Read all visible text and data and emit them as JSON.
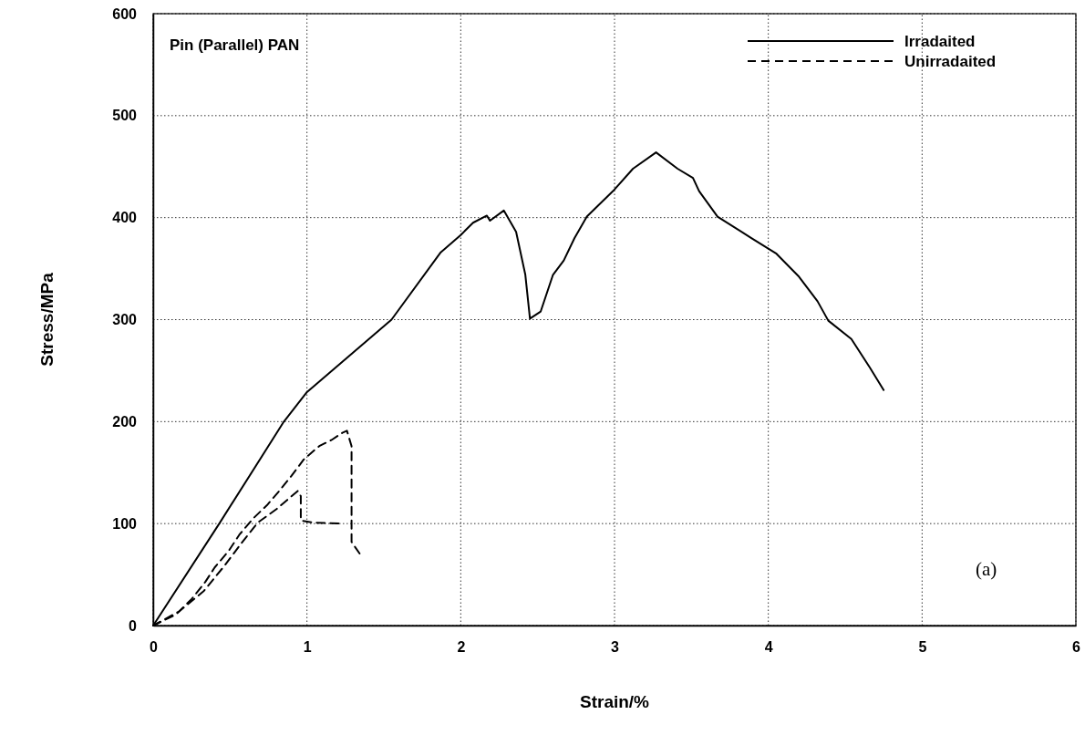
{
  "chart_data": {
    "type": "line",
    "title": "Pin (Parallel) PAN",
    "xlabel": "Strain/%",
    "ylabel": "Stress/MPa",
    "annotations": [
      "(a)"
    ],
    "xlim": [
      0,
      6
    ],
    "xticks": [
      0,
      1,
      2,
      3,
      4,
      5,
      6
    ],
    "ylim": [
      0,
      600
    ],
    "yticks": [
      0,
      100,
      200,
      300,
      400,
      500,
      600
    ],
    "grid": true,
    "legend": "top right",
    "marker": "none",
    "series": [
      {
        "name": "Irradaited",
        "color": "#000000",
        "line_style": "solid",
        "x": [
          0,
          0.43,
          0.85,
          1,
          1.55,
          1.87,
          2.0,
          2.08,
          2.17,
          2.19,
          2.28,
          2.36,
          2.42,
          2.45,
          2.52,
          2.6,
          2.67,
          2.74,
          2.82,
          2.99,
          3.12,
          3.27,
          3.41,
          3.51,
          3.55,
          3.67,
          3.89,
          4.05,
          4.2,
          4.32,
          4.39,
          4.54,
          4.66,
          4.75
        ],
        "values": [
          0,
          100,
          200,
          229,
          300,
          366,
          383,
          395,
          402,
          397,
          407,
          386,
          344,
          301,
          308,
          344,
          358,
          380,
          401,
          426,
          448,
          464,
          448,
          439,
          426,
          401,
          380,
          365,
          342,
          318,
          299,
          281,
          253,
          231
        ]
      },
      {
        "name": "Unirradaited",
        "color": "#000000",
        "line_style": "dashed",
        "x": [
          0,
          0.15,
          0.25,
          0.34,
          0.4,
          0.49,
          0.56,
          0.65,
          0.74,
          0.82,
          0.9,
          0.98,
          1.08,
          1.16,
          1.23,
          1.26,
          1.29,
          1.29,
          1.29,
          1.35
        ],
        "values": [
          0,
          11,
          26,
          43,
          57,
          73,
          89,
          105,
          118,
          132,
          147,
          163,
          176,
          182,
          189,
          191,
          176,
          135,
          82,
          69
        ]
      },
      {
        "color": "#000000",
        "line_style": "dashed",
        "x": [
          0,
          0.17,
          0.33,
          0.46,
          0.58,
          0.68,
          0.8,
          0.94,
          0.96,
          0.96,
          1.04,
          1.23
        ],
        "values": [
          0,
          14,
          34,
          58,
          82,
          101,
          114,
          132,
          127,
          103,
          101,
          100
        ]
      }
    ]
  }
}
